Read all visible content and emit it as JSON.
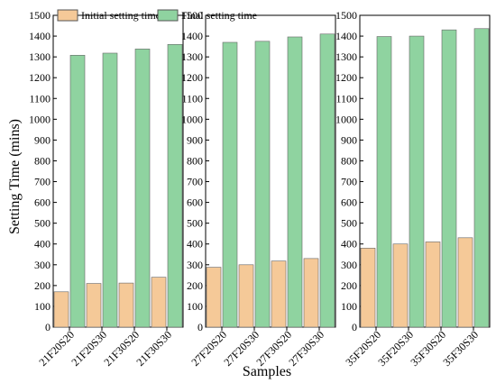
{
  "chart_data": {
    "type": "bar",
    "xlabel": "Samples",
    "ylabel": "Setting Time (mins)",
    "ylim": [
      0,
      1500
    ],
    "yticks": [
      0,
      100,
      200,
      300,
      400,
      500,
      600,
      700,
      800,
      900,
      1000,
      1100,
      1200,
      1300,
      1400,
      1500
    ],
    "grid": false,
    "legend_position": "top-left",
    "series_names": [
      "Initial setting time",
      "Final setting time"
    ],
    "series_colors": [
      "#f5c998",
      "#8fd3a0"
    ],
    "panels": [
      {
        "categories": [
          "21F20S20",
          "21F20S30",
          "21F30S20",
          "21F30S30"
        ],
        "series": [
          {
            "name": "Initial setting time",
            "values": [
              170,
              210,
              212,
              240
            ]
          },
          {
            "name": "Final setting time",
            "values": [
              1308,
              1318,
              1338,
              1360
            ]
          }
        ]
      },
      {
        "categories": [
          "27F20S20",
          "27F20S30",
          "27F30S20",
          "27F30S30"
        ],
        "series": [
          {
            "name": "Initial setting time",
            "values": [
              288,
              300,
              318,
              330
            ]
          },
          {
            "name": "Final setting time",
            "values": [
              1370,
              1375,
              1396,
              1410
            ]
          }
        ]
      },
      {
        "categories": [
          "35F20S20",
          "35F20S30",
          "35F30S20",
          "35F30S30"
        ],
        "series": [
          {
            "name": "Initial setting time",
            "values": [
              380,
              400,
              410,
              430
            ]
          },
          {
            "name": "Final setting time",
            "values": [
              1398,
              1400,
              1430,
              1436
            ]
          }
        ]
      }
    ]
  }
}
